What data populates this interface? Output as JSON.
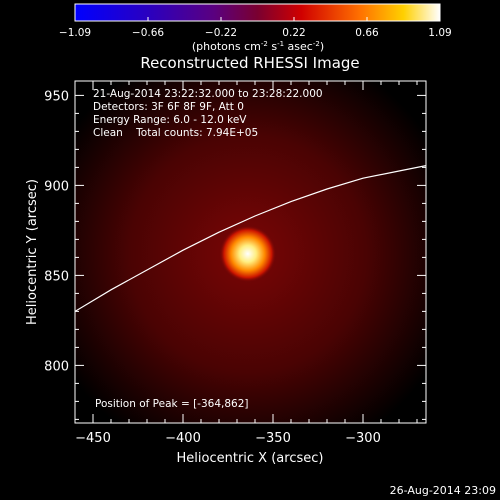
{
  "chart_data": {
    "type": "heatmap",
    "title": "Reconstructed RHESSI Image",
    "xlabel": "Heliocentric X (arcsec)",
    "ylabel": "Heliocentric Y (arcsec)",
    "xlim": [
      -460,
      -265
    ],
    "ylim": [
      768,
      958
    ],
    "x_ticks": [
      -450,
      -400,
      -350,
      -300
    ],
    "y_ticks": [
      800,
      850,
      900,
      950
    ],
    "colorbar": {
      "min": -1.09,
      "max": 1.09,
      "ticks": [
        "-1.09",
        "-0.66",
        "-0.22",
        "0.22",
        "0.66",
        "1.09"
      ],
      "label_main": "(photons cm",
      "label_exp1": "-2",
      "label_mid": " s",
      "label_exp2": "-1",
      "label_tail": " asec",
      "label_exp3": "-2",
      "label_end": ")"
    },
    "annotations": [
      "21-Aug-2014 23:22:32.000 to 23:28:22.000",
      "Detectors: 3F 6F 8F 9F, Att 0",
      "Energy Range: 6.0 - 12.0 keV",
      "Clean    Total counts: 7.94E+05"
    ],
    "peak_label": "Position of Peak = [-364,862]",
    "peak": {
      "x": -364,
      "y": 862
    },
    "limb_curve": [
      [
        -460,
        830
      ],
      [
        -440,
        842
      ],
      [
        -420,
        853
      ],
      [
        -400,
        864
      ],
      [
        -380,
        874
      ],
      [
        -360,
        883
      ],
      [
        -340,
        891
      ],
      [
        -320,
        898
      ],
      [
        -300,
        904
      ],
      [
        -280,
        908
      ],
      [
        -265,
        911
      ]
    ],
    "footer_date": "26-Aug-2014 23:09"
  }
}
